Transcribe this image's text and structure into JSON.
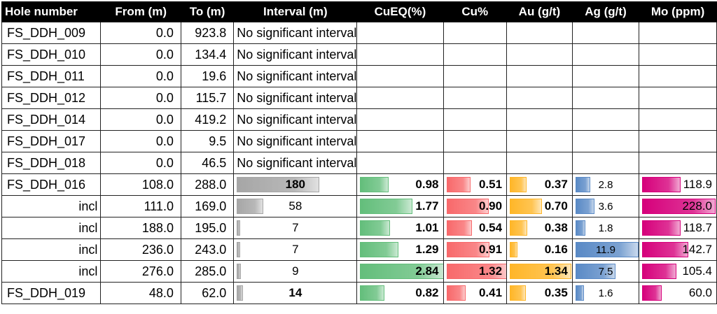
{
  "columns": [
    "Hole number",
    "From (m)",
    "To (m)",
    "Interval (m)",
    "CuEQ(%)",
    "Cu%",
    "Au (g/t)",
    "Ag (g/t)",
    "Mo (ppm)"
  ],
  "max": {
    "interval": 180,
    "cueq": 2.84,
    "cu": 1.32,
    "au": 1.34,
    "ag": 11.9,
    "mo": 228.0
  },
  "colors": {
    "interval": "#a6a6a6",
    "cueq": "#63be7b",
    "cu": "#f8696b",
    "au": "#ffb628",
    "ag": "#5a8ac6",
    "mo": "#d6007b"
  },
  "nsi_rows": [
    {
      "hole": "FS_DDH_009",
      "from": "0.0",
      "to": "923.8",
      "note": "No significant interval"
    },
    {
      "hole": "FS_DDH_010",
      "from": "0.0",
      "to": "134.4",
      "note": "No significant interval"
    },
    {
      "hole": "FS_DDH_011",
      "from": "0.0",
      "to": "19.6",
      "note": "No significant interval"
    },
    {
      "hole": "FS_DDH_012",
      "from": "0.0",
      "to": "115.7",
      "note": "No significant interval"
    },
    {
      "hole": "FS_DDH_014",
      "from": "0.0",
      "to": "419.2",
      "note": "No significant interval"
    },
    {
      "hole": "FS_DDH_017",
      "from": "0.0",
      "to": "9.5",
      "note": "No significant interval"
    },
    {
      "hole": "FS_DDH_018",
      "from": "0.0",
      "to": "46.5",
      "note": "No significant interval"
    }
  ],
  "result_rows": [
    {
      "hole": "FS_DDH_016",
      "incl": false,
      "from": "108.0",
      "to": "288.0",
      "interval": "180",
      "cueq": "0.98",
      "cu": "0.51",
      "au": "0.37",
      "ag": "2.8",
      "mo": "118.9"
    },
    {
      "hole": "incl",
      "incl": true,
      "from": "111.0",
      "to": "169.0",
      "interval": "58",
      "cueq": "1.77",
      "cu": "0.90",
      "au": "0.70",
      "ag": "3.6",
      "mo": "228.0"
    },
    {
      "hole": "incl",
      "incl": true,
      "from": "188.0",
      "to": "195.0",
      "interval": "7",
      "cueq": "1.01",
      "cu": "0.54",
      "au": "0.38",
      "ag": "1.8",
      "mo": "118.7"
    },
    {
      "hole": "incl",
      "incl": true,
      "from": "236.0",
      "to": "243.0",
      "interval": "7",
      "cueq": "1.29",
      "cu": "0.91",
      "au": "0.16",
      "ag": "11.9",
      "mo": "142.7"
    },
    {
      "hole": "incl",
      "incl": true,
      "from": "276.0",
      "to": "285.0",
      "interval": "9",
      "cueq": "2.84",
      "cu": "1.32",
      "au": "1.34",
      "ag": "7.5",
      "mo": "105.4"
    },
    {
      "hole": "FS_DDH_019",
      "incl": false,
      "from": "48.0",
      "to": "62.0",
      "interval": "14",
      "cueq": "0.82",
      "cu": "0.41",
      "au": "0.35",
      "ag": "1.6",
      "mo": "60.0"
    }
  ]
}
